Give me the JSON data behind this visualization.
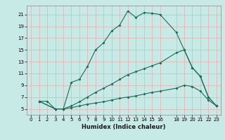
{
  "xlabel": "Humidex (Indice chaleur)",
  "bg_color": "#c8eae6",
  "grid_color": "#e0b8b8",
  "line_color": "#1a6b5a",
  "xlim": [
    -0.5,
    23.5
  ],
  "ylim": [
    4.0,
    22.5
  ],
  "xticks": [
    0,
    1,
    2,
    3,
    4,
    5,
    6,
    7,
    8,
    9,
    10,
    11,
    12,
    13,
    14,
    15,
    16,
    18,
    19,
    20,
    21,
    22,
    23
  ],
  "yticks": [
    5,
    7,
    9,
    11,
    13,
    15,
    17,
    19,
    21
  ],
  "curve1_x": [
    1,
    2,
    3,
    4,
    5,
    6,
    7,
    8,
    9,
    10,
    11,
    12,
    13,
    14,
    15,
    16,
    18,
    19,
    20,
    21,
    22,
    23
  ],
  "curve1_y": [
    6.3,
    6.3,
    5.0,
    5.0,
    9.5,
    10.0,
    12.2,
    15.0,
    16.2,
    18.2,
    19.2,
    21.6,
    20.5,
    21.3,
    21.2,
    21.0,
    18.0,
    15.0,
    12.0,
    10.5,
    7.0,
    5.5
  ],
  "curve2_x": [
    1,
    3,
    4,
    5,
    6,
    7,
    8,
    9,
    10,
    11,
    12,
    13,
    14,
    15,
    16,
    18,
    19,
    20,
    21,
    22,
    23
  ],
  "curve2_y": [
    6.3,
    5.0,
    5.0,
    5.5,
    6.2,
    7.0,
    7.8,
    8.5,
    9.2,
    10.0,
    10.8,
    11.3,
    11.8,
    12.3,
    12.8,
    14.5,
    15.0,
    12.0,
    10.5,
    7.0,
    5.5
  ],
  "curve3_x": [
    1,
    3,
    4,
    5,
    6,
    7,
    8,
    9,
    10,
    11,
    12,
    13,
    14,
    15,
    16,
    18,
    19,
    20,
    21,
    22,
    23
  ],
  "curve3_y": [
    6.3,
    5.0,
    5.0,
    5.2,
    5.5,
    5.8,
    6.0,
    6.2,
    6.5,
    6.8,
    7.0,
    7.2,
    7.5,
    7.8,
    8.0,
    8.5,
    9.0,
    8.8,
    8.0,
    6.5,
    5.5
  ]
}
